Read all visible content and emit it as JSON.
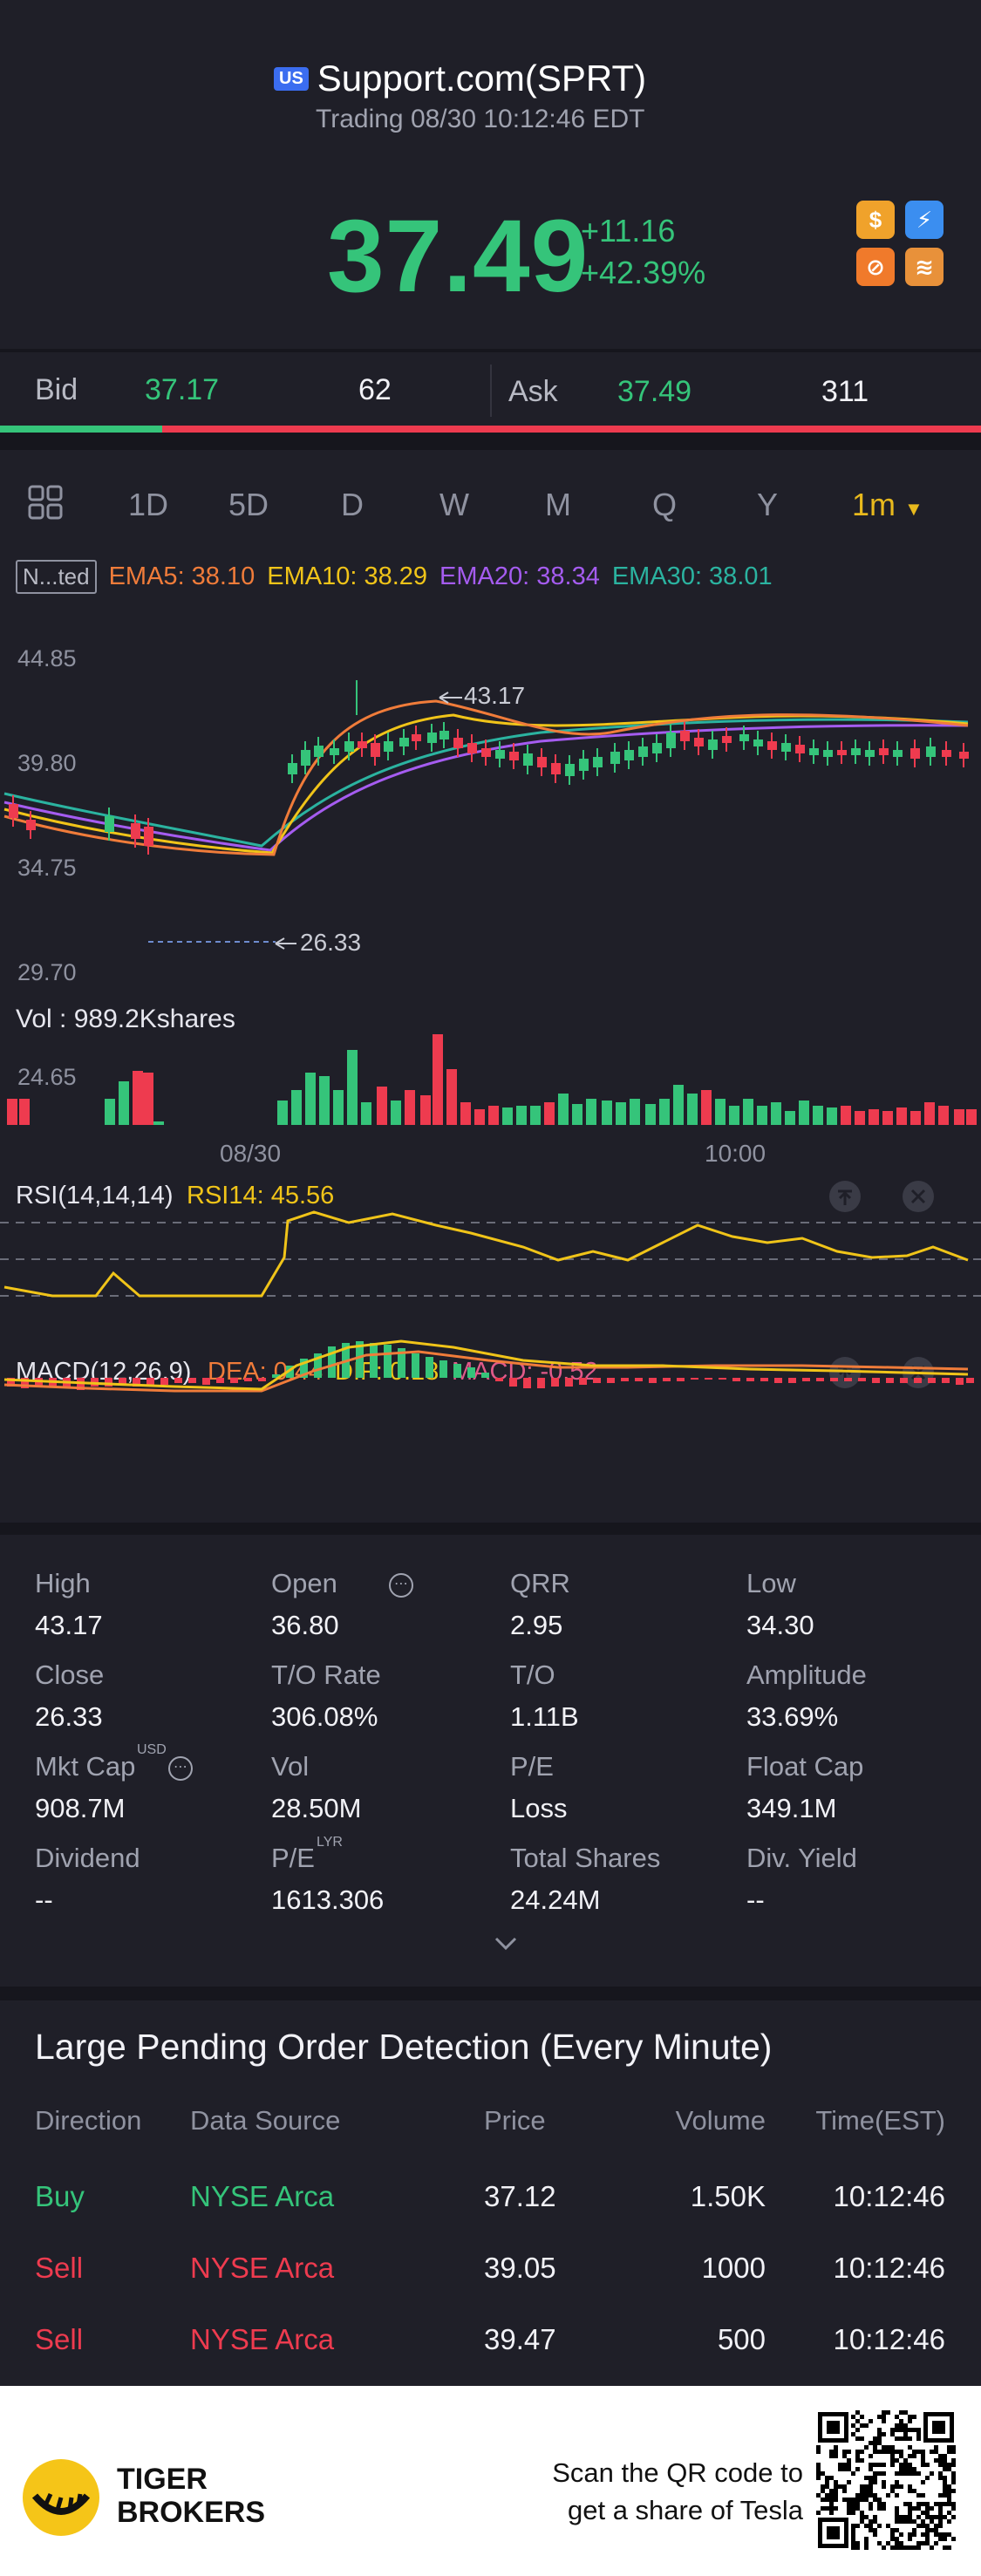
{
  "header": {
    "market_badge": "US",
    "title": "Support.com(SPRT)",
    "subtitle": "Trading 08/30 10:12:46 EDT",
    "price": "37.49",
    "change": "+11.16",
    "change_pct": "+42.39%",
    "icons": [
      "dollar-icon",
      "lightning-icon",
      "no-short-icon",
      "margin-icon"
    ]
  },
  "bidask": {
    "bid_label": "Bid",
    "bid_price": "37.17",
    "bid_size": "62",
    "ask_label": "Ask",
    "ask_price": "37.49",
    "ask_size": "311",
    "bid_ratio": 0.165
  },
  "tabs": [
    "1D",
    "5D",
    "D",
    "W",
    "M",
    "Q",
    "Y"
  ],
  "active_tab": "1m",
  "indicators": {
    "tag": "N...ted",
    "ema5": "EMA5: 38.10",
    "ema10": "EMA10: 38.29",
    "ema20": "EMA20: 38.34",
    "ema30": "EMA30: 38.01"
  },
  "price_axis": [
    "44.85",
    "39.80",
    "34.75",
    "29.70",
    "24.65"
  ],
  "high_marker": "43.17",
  "low_marker": "26.33",
  "volume_label": "Vol   : 989.2Kshares",
  "time_axis": [
    "08/30",
    "10:00"
  ],
  "rsi": {
    "label": "RSI(14,14,14)",
    "value": "RSI14: 45.56"
  },
  "macd": {
    "label": "MACD(12,26,9)",
    "dea": "DEA: 0.44",
    "dif": "DIF: 0.18",
    "macd": "MACD: -0.52"
  },
  "stats": [
    {
      "label": "High",
      "value": "43.17"
    },
    {
      "label": "Open",
      "value": "36.80"
    },
    {
      "label": "QRR",
      "value": "2.95"
    },
    {
      "label": "Low",
      "value": "34.30"
    },
    {
      "label": "Close",
      "value": "26.33"
    },
    {
      "label": "T/O Rate",
      "value": "306.08%"
    },
    {
      "label": "T/O",
      "value": "1.11B"
    },
    {
      "label": "Amplitude",
      "value": "33.69%"
    },
    {
      "label": "Mkt Cap",
      "value": "908.7M"
    },
    {
      "label": "Vol",
      "value": "28.50M"
    },
    {
      "label": "P/E",
      "value": "Loss"
    },
    {
      "label": "Float Cap",
      "value": "349.1M"
    },
    {
      "label": "Dividend",
      "value": "--"
    },
    {
      "label": "P/E",
      "value": "1613.306"
    },
    {
      "label": "Total Shares",
      "value": "24.24M"
    },
    {
      "label": "Div. Yield",
      "value": "--"
    }
  ],
  "stat_superscripts": {
    "mkt_cap": "USD",
    "pe_lyr": "LYR"
  },
  "orders": {
    "title": "Large Pending Order Detection (Every Minute)",
    "headers": [
      "Direction",
      "Data Source",
      "Price",
      "Volume",
      "Time(EST)"
    ],
    "rows": [
      {
        "direction": "Buy",
        "source": "NYSE Arca",
        "price": "37.12",
        "volume": "1.50K",
        "time": "10:12:46"
      },
      {
        "direction": "Sell",
        "source": "NYSE Arca",
        "price": "39.05",
        "volume": "1000",
        "time": "10:12:46"
      },
      {
        "direction": "Sell",
        "source": "NYSE Arca",
        "price": "39.47",
        "volume": "500",
        "time": "10:12:46"
      }
    ]
  },
  "footer": {
    "brand_line1": "TIGER",
    "brand_line2": "BROKERS",
    "cta_line1": "Scan the QR code to",
    "cta_line2": "get a share of Tesla"
  },
  "colors": {
    "up": "#35c47a",
    "down": "#ee3b4f",
    "ema5": "#f07c3a",
    "ema10": "#f0c419",
    "ema20": "#a55cf0",
    "ema30": "#2bb3a0",
    "accent": "#e8b91d"
  }
}
